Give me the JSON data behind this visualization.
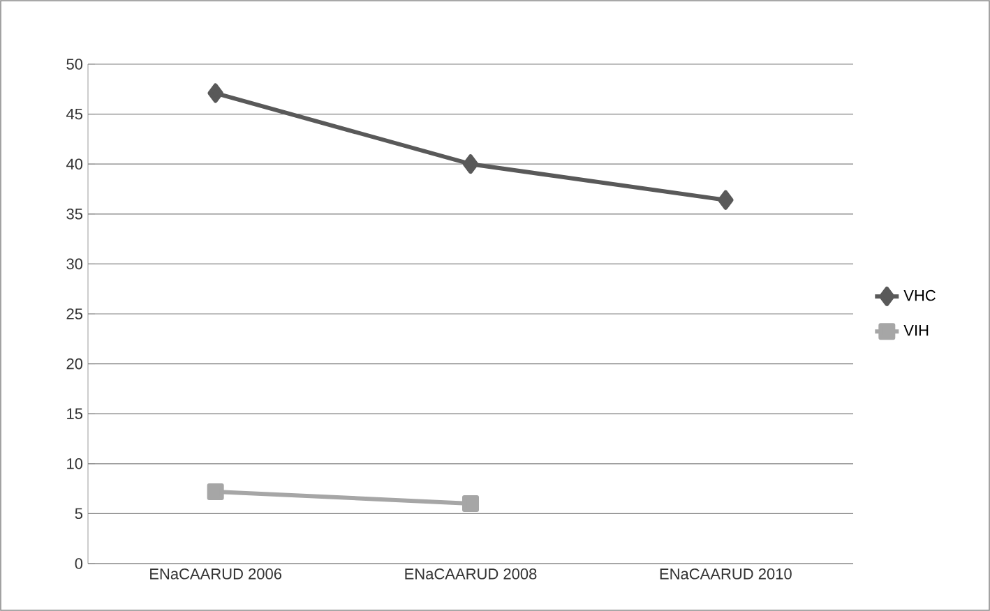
{
  "chart_data": {
    "type": "line",
    "categories": [
      "ENaCAARUD 2006",
      "ENaCAARUD 2008",
      "ENaCAARUD 2010"
    ],
    "series": [
      {
        "name": "VHC",
        "color": "#595959",
        "values": [
          47.1,
          40.0,
          36.4
        ],
        "marker": "diamond"
      },
      {
        "name": "VIH",
        "color": "#a6a6a6",
        "values": [
          7.2,
          6.0,
          null
        ],
        "marker": "square"
      }
    ],
    "ylim": [
      0,
      50
    ],
    "yticks": [
      0,
      5,
      10,
      15,
      20,
      25,
      30,
      35,
      40,
      45,
      50
    ],
    "grid": "y",
    "legend": "right"
  }
}
